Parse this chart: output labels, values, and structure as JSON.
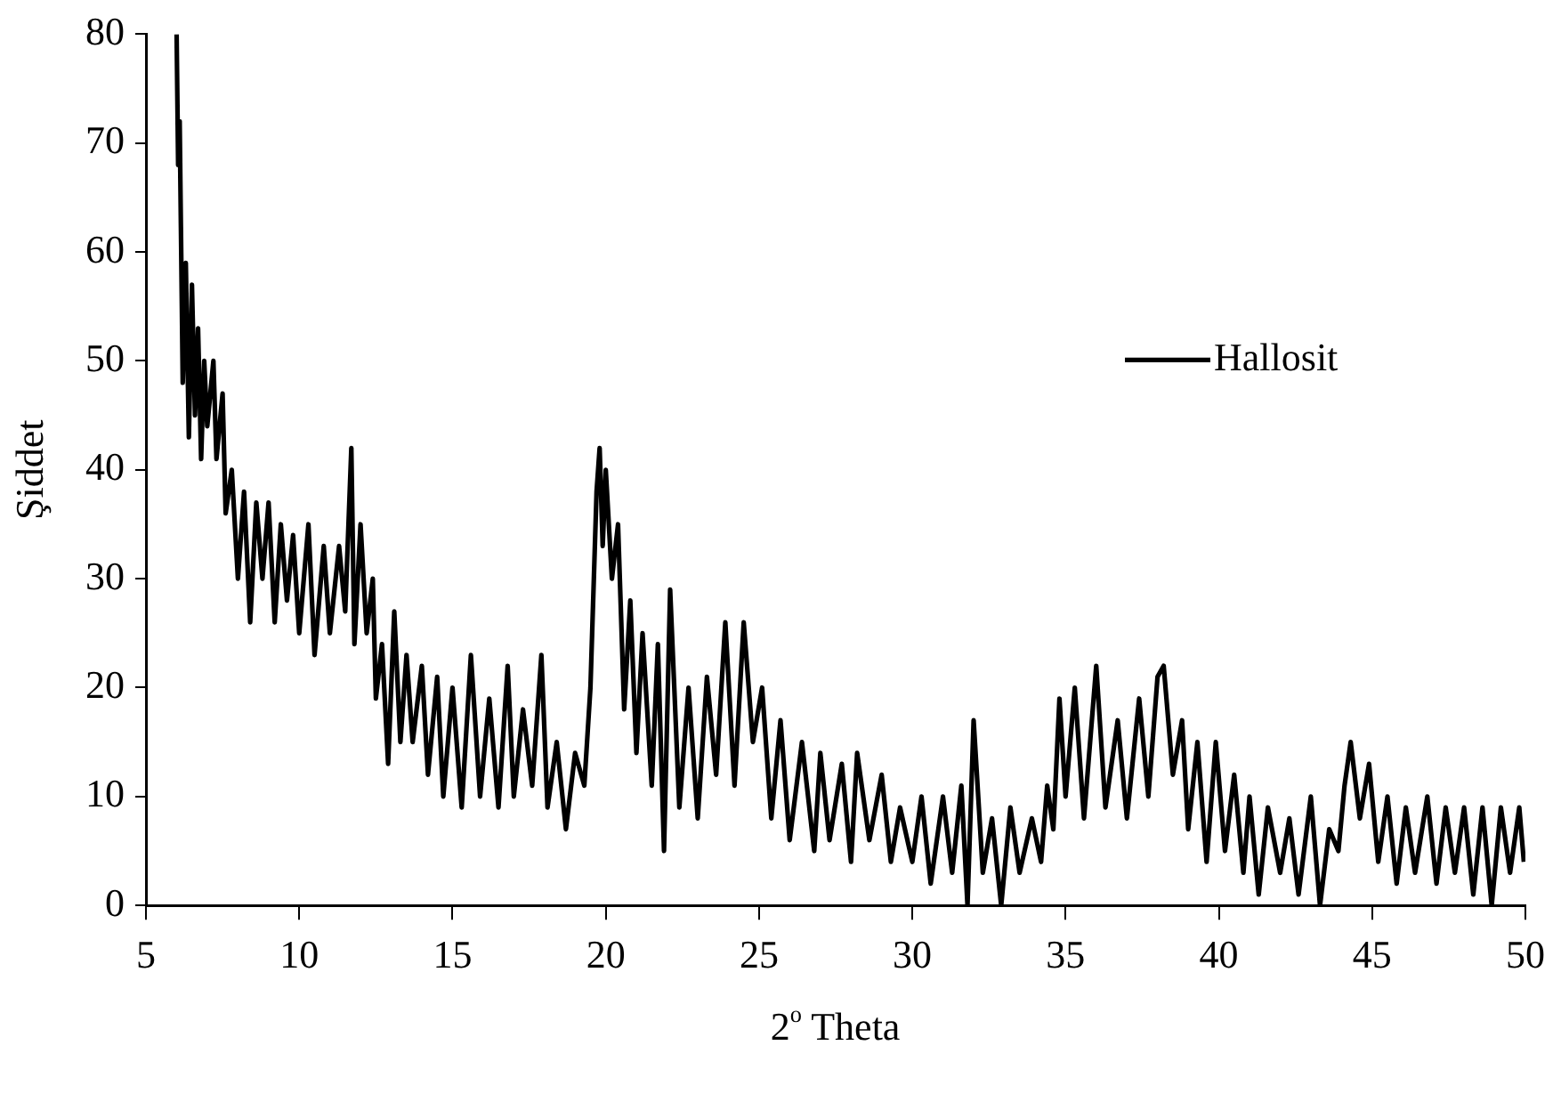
{
  "chart_data": {
    "type": "line",
    "xlabel": "2$^{o}$ Theta",
    "ylabel": "Şiddet",
    "legend": "top right",
    "grid": false,
    "marker": "none",
    "line_style": "solid",
    "xlim": [
      5,
      50
    ],
    "xticks": [
      5,
      10,
      15,
      20,
      25,
      30,
      35,
      40,
      45,
      50
    ],
    "ylim": [
      0,
      80
    ],
    "yticks": [
      0,
      10,
      20,
      30,
      40,
      50,
      60,
      70,
      80
    ],
    "series": [
      {
        "name": "Hallosit",
        "color": "#000000",
        "x": [
          6.0,
          6.05,
          6.1,
          6.2,
          6.3,
          6.4,
          6.5,
          6.6,
          6.7,
          6.8,
          6.9,
          7.0,
          7.2,
          7.3,
          7.5,
          7.6,
          7.8,
          8.0,
          8.2,
          8.4,
          8.6,
          8.8,
          9.0,
          9.2,
          9.4,
          9.6,
          9.8,
          10.0,
          10.3,
          10.5,
          10.8,
          11.0,
          11.3,
          11.5,
          11.7,
          11.8,
          12.0,
          12.2,
          12.4,
          12.5,
          12.7,
          12.9,
          13.1,
          13.3,
          13.5,
          13.7,
          14.0,
          14.2,
          14.5,
          14.7,
          15.0,
          15.3,
          15.6,
          15.9,
          16.2,
          16.5,
          16.8,
          17.0,
          17.3,
          17.6,
          17.9,
          18.1,
          18.4,
          18.7,
          19.0,
          19.3,
          19.5,
          19.7,
          19.8,
          19.9,
          20.0,
          20.2,
          20.4,
          20.6,
          20.8,
          21.0,
          21.2,
          21.5,
          21.7,
          21.9,
          22.1,
          22.4,
          22.7,
          23.0,
          23.3,
          23.6,
          23.9,
          24.2,
          24.5,
          24.8,
          25.1,
          25.4,
          25.7,
          26.0,
          26.4,
          26.8,
          27.0,
          27.3,
          27.7,
          28.0,
          28.2,
          28.6,
          29.0,
          29.3,
          29.6,
          30.0,
          30.3,
          30.6,
          31.0,
          31.3,
          31.6,
          31.8,
          32.0,
          32.3,
          32.6,
          32.9,
          33.2,
          33.5,
          33.9,
          34.2,
          34.4,
          34.6,
          34.8,
          35.0,
          35.3,
          35.6,
          36.0,
          36.3,
          36.7,
          37.0,
          37.4,
          37.7,
          38.0,
          38.2,
          38.5,
          38.8,
          39.0,
          39.3,
          39.6,
          39.9,
          40.2,
          40.5,
          40.8,
          41.0,
          41.3,
          41.6,
          42.0,
          42.3,
          42.6,
          43.0,
          43.3,
          43.6,
          43.9,
          44.1,
          44.3,
          44.6,
          44.9,
          45.2,
          45.5,
          45.8,
          46.1,
          46.4,
          46.8,
          47.1,
          47.4,
          47.7,
          48.0,
          48.3,
          48.6,
          48.9,
          49.2,
          49.5,
          49.8,
          49.95
        ],
        "values": [
          80,
          68,
          72,
          48,
          59,
          43,
          57,
          45,
          53,
          41,
          50,
          44,
          50,
          41,
          47,
          36,
          40,
          30,
          38,
          26,
          37,
          30,
          37,
          26,
          35,
          28,
          34,
          25,
          35,
          23,
          33,
          25,
          33,
          27,
          42,
          24,
          35,
          25,
          30,
          19,
          24,
          13,
          27,
          15,
          23,
          15,
          22,
          12,
          21,
          10,
          20,
          9,
          23,
          10,
          19,
          9,
          22,
          10,
          18,
          11,
          23,
          9,
          15,
          7,
          14,
          11,
          20,
          38,
          42,
          33,
          40,
          30,
          35,
          18,
          28,
          14,
          25,
          11,
          24,
          5,
          29,
          9,
          20,
          8,
          21,
          12,
          26,
          11,
          26,
          15,
          20,
          8,
          17,
          6,
          15,
          5,
          14,
          6,
          13,
          4,
          14,
          6,
          12,
          4,
          9,
          4,
          10,
          2,
          10,
          3,
          11,
          0,
          17,
          3,
          8,
          0,
          9,
          3,
          8,
          4,
          11,
          7,
          19,
          10,
          20,
          8,
          22,
          9,
          17,
          8,
          19,
          10,
          21,
          22,
          12,
          17,
          7,
          15,
          4,
          15,
          5,
          12,
          3,
          10,
          1,
          9,
          3,
          8,
          1,
          10,
          0,
          7,
          5,
          11,
          15,
          8,
          13,
          4,
          10,
          2,
          9,
          3,
          10,
          2,
          9,
          3,
          9,
          1,
          9,
          0,
          9,
          3,
          9,
          4
        ]
      }
    ]
  }
}
